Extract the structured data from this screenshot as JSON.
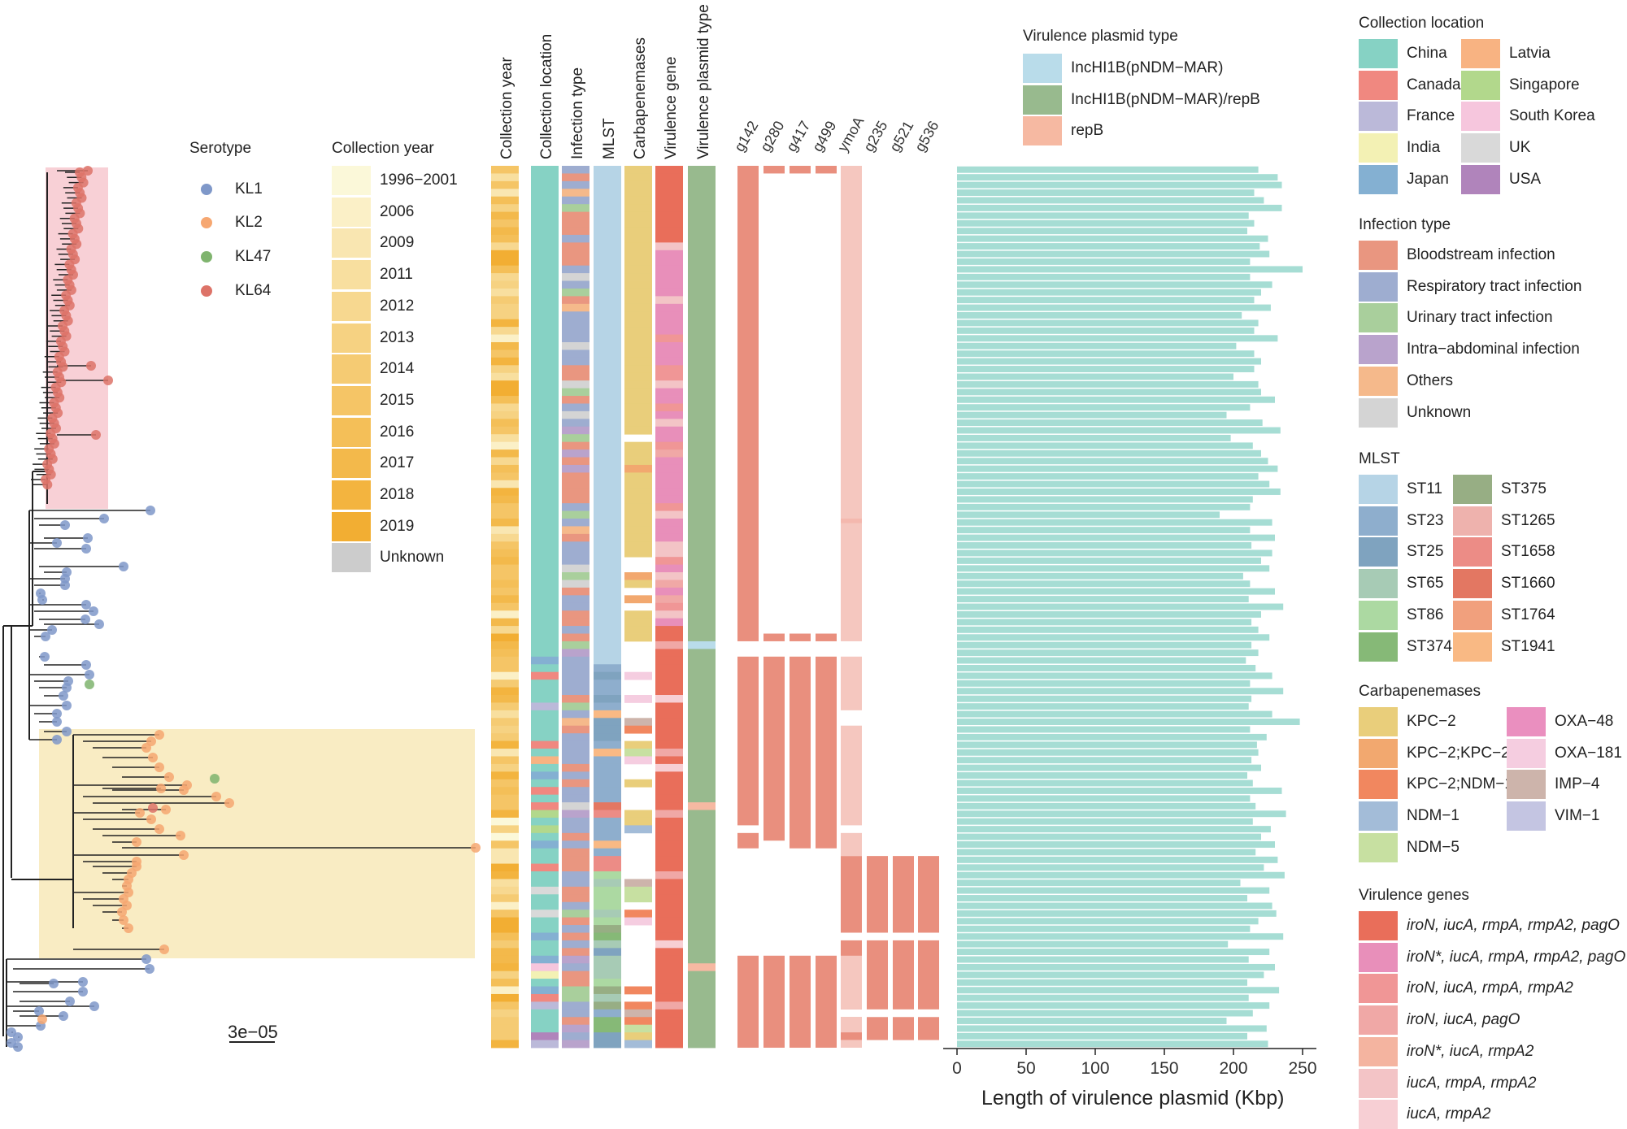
{
  "serotype_legend": {
    "title": "Serotype",
    "items": [
      {
        "label": "KL1",
        "color": "#7f98c9"
      },
      {
        "label": "KL2",
        "color": "#f6a771"
      },
      {
        "label": "KL47",
        "color": "#7fb46e"
      },
      {
        "label": "KL64",
        "color": "#dd7368"
      }
    ]
  },
  "year_legend": {
    "title": "Collection year",
    "items": [
      {
        "label": "1996−2001",
        "color": "#fbf8d9"
      },
      {
        "label": "2006",
        "color": "#fbf0c7"
      },
      {
        "label": "2009",
        "color": "#f9e6b1"
      },
      {
        "label": "2011",
        "color": "#f8df9f"
      },
      {
        "label": "2012",
        "color": "#f7d890"
      },
      {
        "label": "2013",
        "color": "#f6d282"
      },
      {
        "label": "2014",
        "color": "#f5cb73"
      },
      {
        "label": "2015",
        "color": "#f5c566"
      },
      {
        "label": "2016",
        "color": "#f4bf58"
      },
      {
        "label": "2017",
        "color": "#f3b94b"
      },
      {
        "label": "2018",
        "color": "#f3b43f"
      },
      {
        "label": "2019",
        "color": "#f2ae33"
      },
      {
        "label": "Unknown",
        "color": "#cccccc"
      }
    ]
  },
  "column_headers": [
    "Collection year",
    "Collection location",
    "Infection type",
    "MLST",
    "Carbapenemases",
    "Virulence gene",
    "Virulence plasmid type"
  ],
  "gene_headers": [
    "g142",
    "g280",
    "g417",
    "g499",
    "ymoA",
    "g235",
    "g521",
    "g536"
  ],
  "plasmid_type_legend": {
    "title": "Virulence plasmid type",
    "items": [
      {
        "label": "IncHI1B(pNDM−MAR)",
        "color": "#b9dcea"
      },
      {
        "label": "IncHI1B(pNDM−MAR)/repB",
        "color": "#98ba8e"
      },
      {
        "label": "repB",
        "color": "#f6b9a2"
      }
    ]
  },
  "location_legend": {
    "title": "Collection location",
    "items": [
      {
        "label": "China",
        "color": "#86d2c4"
      },
      {
        "label": "Latvia",
        "color": "#f8b382"
      },
      {
        "label": "Canada",
        "color": "#f08880"
      },
      {
        "label": "Singapore",
        "color": "#b2d88c"
      },
      {
        "label": "France",
        "color": "#bbb9d9"
      },
      {
        "label": "South Korea",
        "color": "#f6c6dd"
      },
      {
        "label": "India",
        "color": "#f3f1b4"
      },
      {
        "label": "UK",
        "color": "#d9d9d9"
      },
      {
        "label": "Japan",
        "color": "#84b0d2"
      },
      {
        "label": "USA",
        "color": "#b084bb"
      }
    ]
  },
  "infection_legend": {
    "title": "Infection type",
    "items": [
      {
        "label": "Bloodstream infection",
        "color": "#e99680"
      },
      {
        "label": "Respiratory tract infection",
        "color": "#9eadd0"
      },
      {
        "label": "Urinary tract infection",
        "color": "#a9cf9c"
      },
      {
        "label": "Intra−abdominal infection",
        "color": "#b9a3cc"
      },
      {
        "label": "Others",
        "color": "#f5b98b"
      },
      {
        "label": "Unknown",
        "color": "#d4d4d4"
      }
    ]
  },
  "mlst_legend": {
    "title": "MLST",
    "items": [
      {
        "label": "ST11",
        "color": "#b6d4e6"
      },
      {
        "label": "ST375",
        "color": "#97ae84"
      },
      {
        "label": "ST23",
        "color": "#8eaecd"
      },
      {
        "label": "ST1265",
        "color": "#eeb2ad"
      },
      {
        "label": "ST25",
        "color": "#7fa3bf"
      },
      {
        "label": "ST1658",
        "color": "#ec8c86"
      },
      {
        "label": "ST65",
        "color": "#a7cbb5"
      },
      {
        "label": "ST1660",
        "color": "#e37762"
      },
      {
        "label": "ST86",
        "color": "#acd9a2"
      },
      {
        "label": "ST1764",
        "color": "#f1a07d"
      },
      {
        "label": "ST374",
        "color": "#86b977"
      },
      {
        "label": "ST1941",
        "color": "#f9b984"
      }
    ]
  },
  "carbapenemase_legend": {
    "title": "Carbapenemases",
    "items": [
      {
        "label": "KPC−2",
        "color": "#e9ce7b"
      },
      {
        "label": "OXA−48",
        "color": "#ea8fbf"
      },
      {
        "label": "KPC−2;KPC−2",
        "color": "#f2a86f"
      },
      {
        "label": "OXA−181",
        "color": "#f5cde0"
      },
      {
        "label": "KPC−2;NDM−1",
        "color": "#f1875f"
      },
      {
        "label": "IMP−4",
        "color": "#cdb4ab"
      },
      {
        "label": "NDM−1",
        "color": "#a3bcd8"
      },
      {
        "label": "VIM−1",
        "color": "#c4c5e2"
      },
      {
        "label": "NDM−5",
        "color": "#c7e0a1"
      }
    ]
  },
  "virulence_legend": {
    "title": "Virulence genes",
    "items": [
      {
        "label": "iroN, iucA, rmpA, rmpA2, pagO",
        "color": "#e96e5a"
      },
      {
        "label": "iroN*, iucA, rmpA, rmpA2, pagO",
        "color": "#e88fba"
      },
      {
        "label": "iroN, iucA, rmpA, rmpA2",
        "color": "#f09696"
      },
      {
        "label": "iroN, iucA, pagO",
        "color": "#f0a8a6"
      },
      {
        "label": "iroN*, iucA, rmpA2",
        "color": "#f4b4a0"
      },
      {
        "label": "iucA, rmpA, rmpA2",
        "color": "#f3c4c6"
      },
      {
        "label": "iucA, rmpA2",
        "color": "#f7cfd4"
      }
    ]
  },
  "scale_bar_label": "3e−05",
  "colors": {
    "gene_fill": "#e98f7e",
    "ymoA_fill": "#f5c7bf",
    "bar_fill": "#a6ddd4",
    "kl64_clade_bg": "#f8d0d6",
    "kl2_clade_bg": "#f9ecc3"
  },
  "chart_data": {
    "type": "bar",
    "orientation": "horizontal",
    "title": "",
    "xlabel": "Length of virulence plasmid (Kbp)",
    "ylabel": "",
    "xlim": [
      0,
      260
    ],
    "xticks": [
      0,
      50,
      100,
      150,
      200,
      250
    ],
    "n_isolates": 115,
    "values": [
      218,
      232,
      235,
      215,
      222,
      235,
      211,
      215,
      210,
      225,
      219,
      226,
      212,
      250,
      212,
      228,
      220,
      215,
      227,
      206,
      218,
      215,
      232,
      202,
      215,
      220,
      215,
      200,
      218,
      220,
      230,
      212,
      195,
      221,
      234,
      198,
      214,
      220,
      225,
      232,
      218,
      226,
      234,
      214,
      212,
      190,
      228,
      212,
      230,
      213,
      228,
      220,
      226,
      207,
      212,
      230,
      211,
      236,
      220,
      213,
      218,
      226,
      213,
      218,
      209,
      216,
      228,
      212,
      236,
      213,
      211,
      228,
      248,
      212,
      224,
      217,
      218,
      213,
      220,
      210,
      214,
      235,
      212,
      216,
      238,
      214,
      227,
      220,
      230,
      216,
      232,
      222,
      237,
      205,
      226,
      210,
      228,
      231,
      218,
      212,
      236,
      196,
      226,
      211,
      230,
      222,
      210,
      233,
      211,
      226,
      214,
      195,
      224,
      210,
      225
    ]
  }
}
